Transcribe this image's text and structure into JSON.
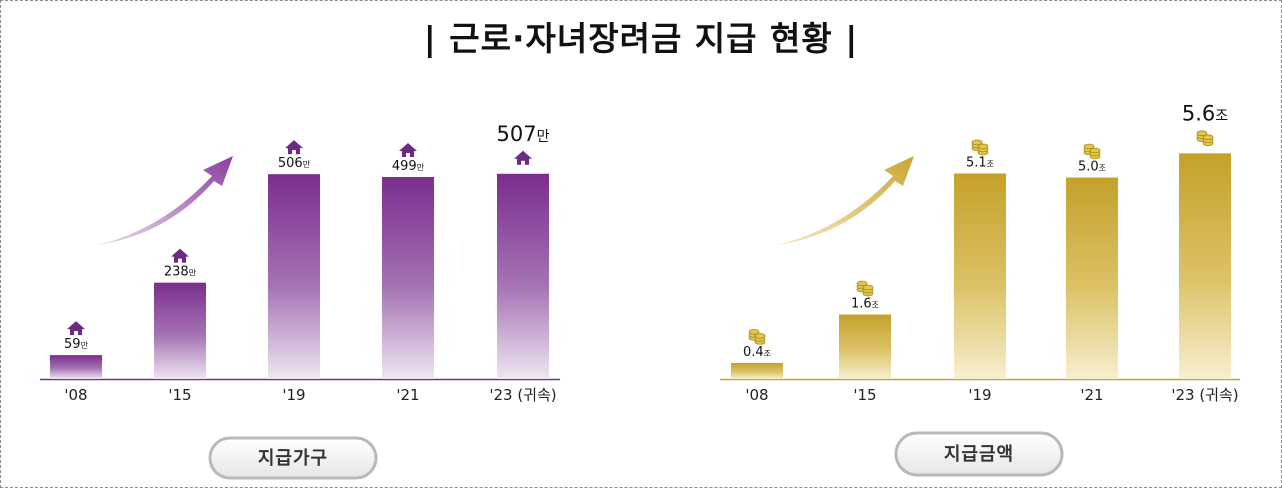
{
  "title": "| 근로·자녀장려금 지급 현황 |",
  "chart_data": [
    {
      "type": "bar",
      "categories": [
        "'08",
        "'15",
        "'19",
        "'21",
        "'23 (귀속)"
      ],
      "values": [
        59,
        238,
        506,
        499,
        507
      ],
      "labels": [
        "59",
        "238",
        "506",
        "499",
        "507"
      ],
      "unit": "만",
      "icon": "house-icon",
      "caption": "지급가구",
      "color": "#7b2d8e",
      "ylim": [
        0,
        560
      ]
    },
    {
      "type": "bar",
      "categories": [
        "'08",
        "'15",
        "'19",
        "'21",
        "'23 (귀속)"
      ],
      "values": [
        0.4,
        1.6,
        5.1,
        5.0,
        5.6
      ],
      "labels": [
        "0.4",
        "1.6",
        "5.1",
        "5.0",
        "5.6"
      ],
      "unit": "조",
      "icon": "coins-icon",
      "caption": "지급금액",
      "color": "#c8a52a",
      "ylim": [
        0,
        6.2
      ]
    }
  ]
}
